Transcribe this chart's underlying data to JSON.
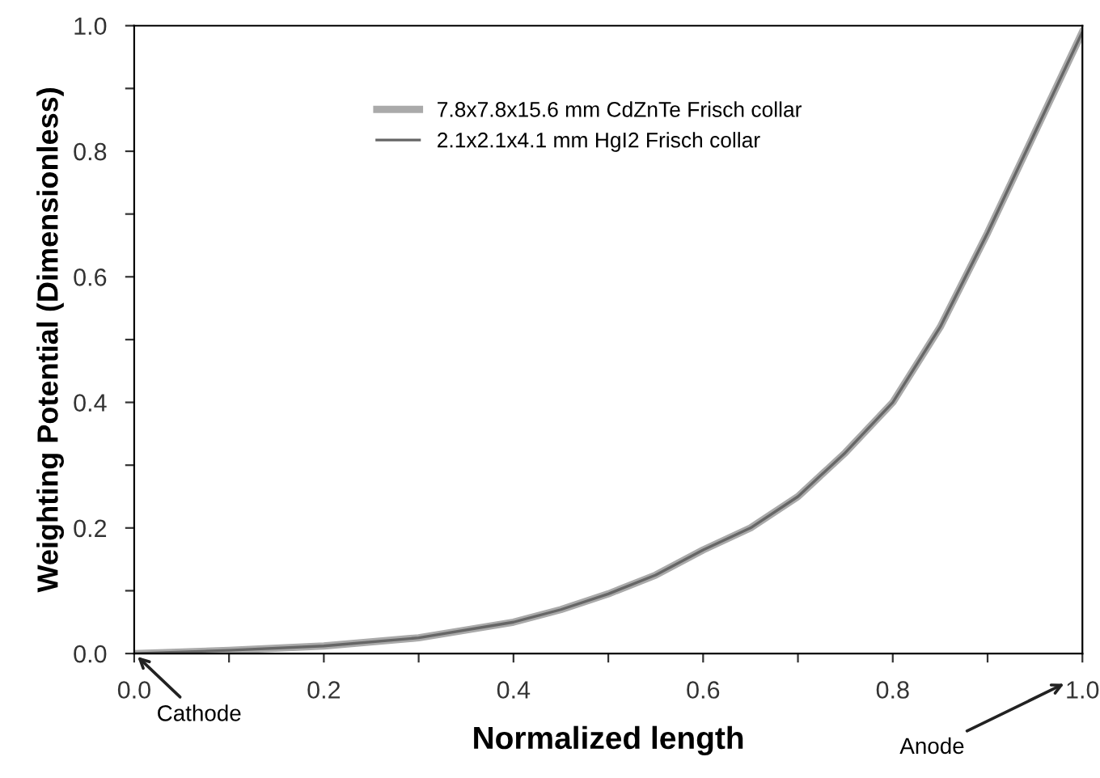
{
  "chart_data": {
    "type": "line",
    "xlabel": "Normalized length",
    "ylabel": "Weighting Potential (Dimensionless)",
    "x": [
      0,
      0.1,
      0.2,
      0.3,
      0.4,
      0.45,
      0.5,
      0.55,
      0.6,
      0.65,
      0.7,
      0.75,
      0.8,
      0.85,
      0.9,
      0.925,
      0.95,
      0.975,
      1.0
    ],
    "series": [
      {
        "name": "7.8x7.8x15.6 mm CdZnTe Frisch collar",
        "color": "#aaaaaa",
        "values": [
          0,
          0.005,
          0.012,
          0.025,
          0.05,
          0.07,
          0.095,
          0.125,
          0.165,
          0.2,
          0.25,
          0.32,
          0.4,
          0.52,
          0.67,
          0.75,
          0.83,
          0.91,
          0.99
        ]
      },
      {
        "name": "2.1x2.1x4.1 mm HgI2 Frisch collar",
        "color": "#666666",
        "values": [
          0,
          0.005,
          0.012,
          0.025,
          0.05,
          0.07,
          0.095,
          0.125,
          0.165,
          0.2,
          0.25,
          0.32,
          0.4,
          0.52,
          0.67,
          0.75,
          0.83,
          0.91,
          0.99
        ]
      }
    ],
    "xlim": [
      0,
      1.0
    ],
    "ylim": [
      0,
      1.0
    ],
    "xticks": [
      {
        "value": 0,
        "label": "0.0"
      },
      {
        "value": 0.1,
        "label": null
      },
      0.2,
      {
        "value": 0.3,
        "label": null
      },
      0.4,
      {
        "value": 0.5,
        "label": null
      },
      0.6,
      {
        "value": 0.7,
        "label": null
      },
      0.8,
      {
        "value": 0.9,
        "label": null
      },
      {
        "value": 1.0,
        "label": "1.0"
      }
    ],
    "yticks": [
      {
        "value": 0,
        "label": "0.0"
      },
      {
        "value": 0.1,
        "label": null
      },
      0.2,
      {
        "value": 0.3,
        "label": null
      },
      0.4,
      {
        "value": 0.5,
        "label": null
      },
      0.6,
      {
        "value": 0.7,
        "label": null
      },
      0.8,
      {
        "value": 0.9,
        "label": null
      },
      {
        "value": 1.0,
        "label": "1.0"
      }
    ],
    "grid": false,
    "legend": "top",
    "marker": "none",
    "line_style": "solid",
    "annotations": [
      {
        "text": "Cathode",
        "x": 0,
        "y": 0
      },
      "Anode"
    ]
  }
}
